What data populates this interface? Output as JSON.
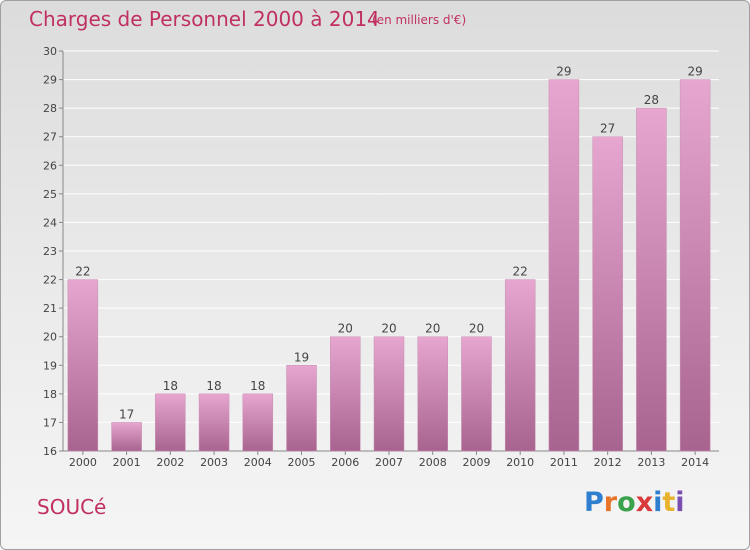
{
  "header": {
    "title": "Charges de Personnel 2000 à 2014",
    "subtitle": "(en milliers d'€)"
  },
  "footer": {
    "commune": "SOUCé",
    "logo": "Proxiti"
  },
  "colors": {
    "title": "#c03060",
    "bar_top": "#e6a6cf",
    "bar_bottom": "#a8648f",
    "grid": "#ffffff"
  },
  "chart_data": {
    "type": "bar",
    "categories": [
      "2000",
      "2001",
      "2002",
      "2003",
      "2004",
      "2005",
      "2006",
      "2007",
      "2008",
      "2009",
      "2010",
      "2011",
      "2012",
      "2013",
      "2014"
    ],
    "values": [
      22,
      17,
      18,
      18,
      18,
      19,
      20,
      20,
      20,
      20,
      22,
      29,
      27,
      28,
      29
    ],
    "ylim": [
      16,
      30
    ],
    "yticks": [
      16,
      17,
      18,
      19,
      20,
      21,
      22,
      23,
      24,
      25,
      26,
      27,
      28,
      29,
      30
    ],
    "grid": true,
    "data_labels": true
  }
}
